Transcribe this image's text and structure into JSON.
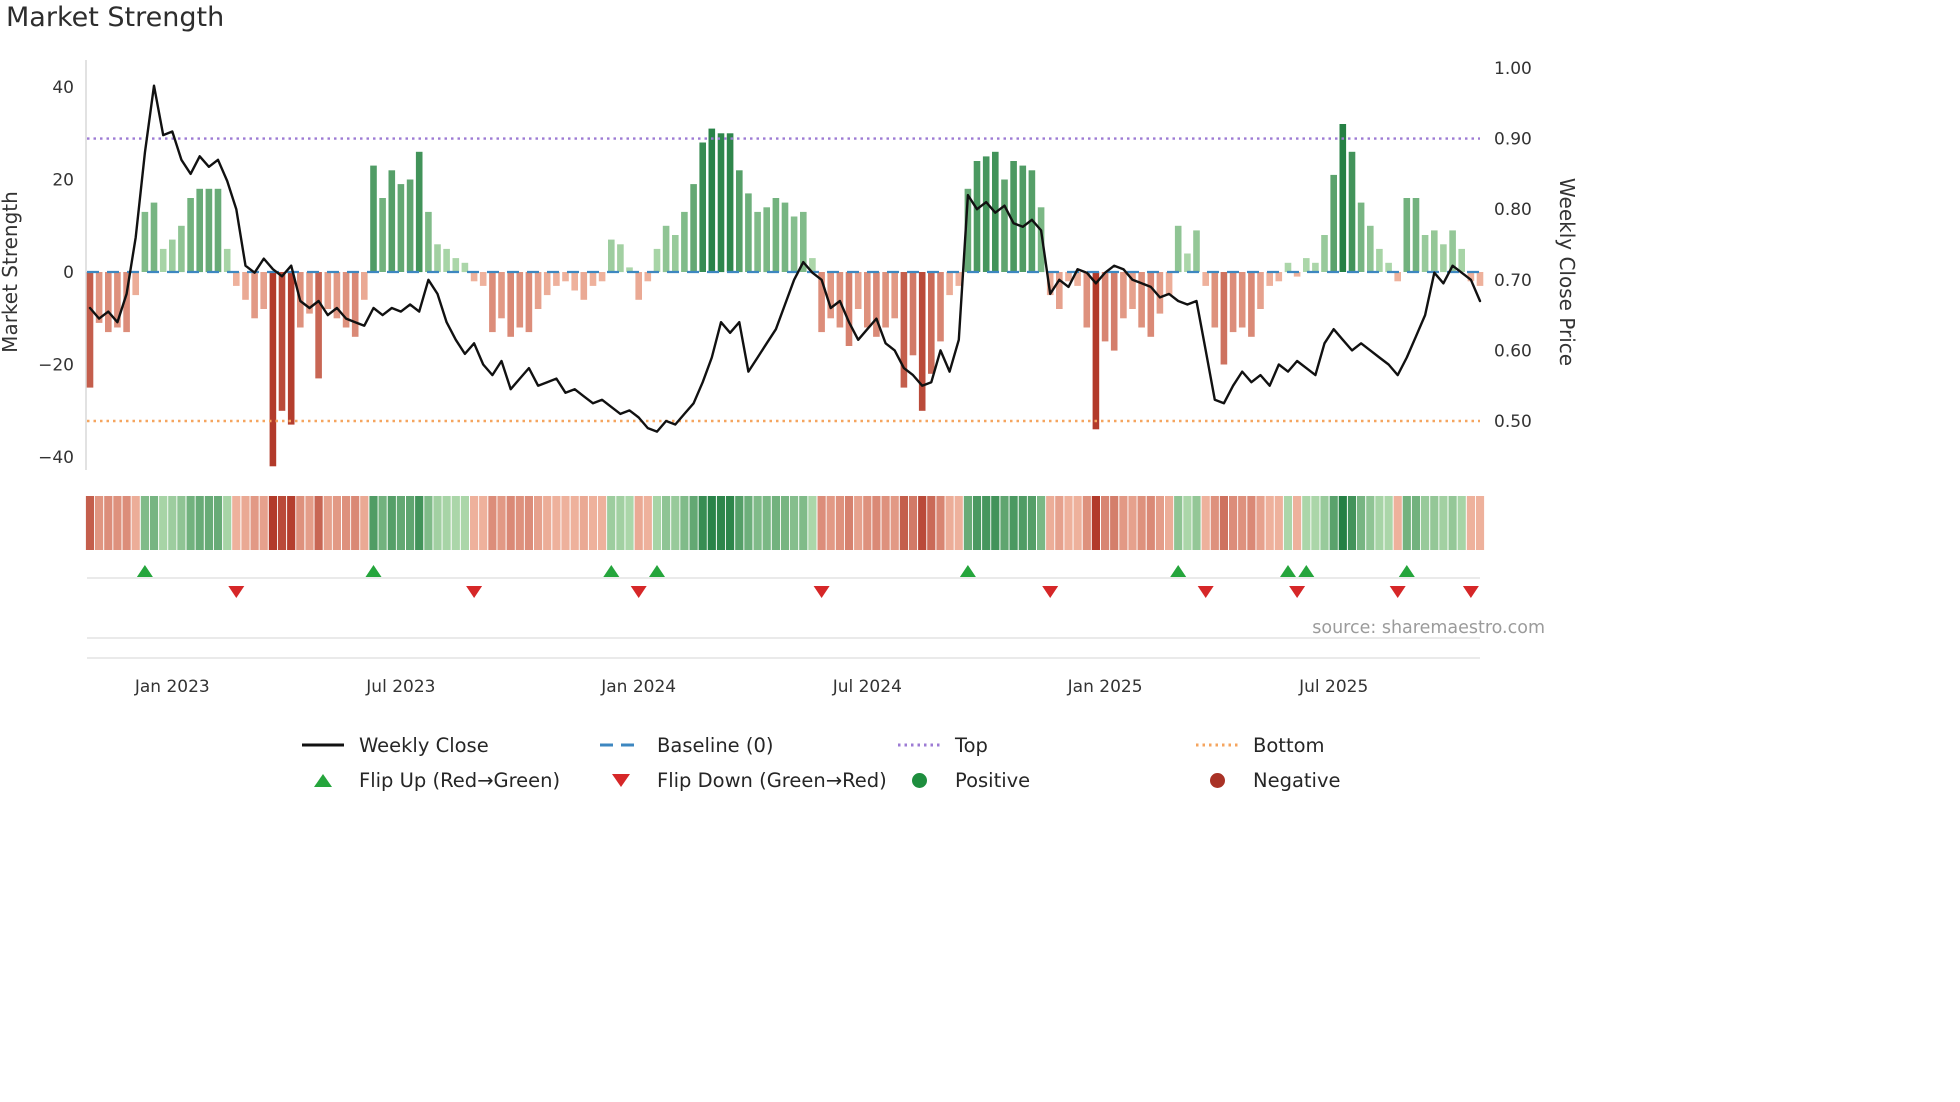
{
  "title": "Market Strength",
  "source": "source: sharemaestro.com",
  "colors": {
    "line": "#111111",
    "baseline": "#3d87c0",
    "top": "#9d7bd4",
    "bottom": "#f5a55f",
    "pos_light": "#bfe3b8",
    "pos_dark": "#1b7a3d",
    "neg_light": "#f6c1ab",
    "neg_dark": "#b23a2a",
    "flip_up": "#25a53c",
    "flip_down": "#d62728",
    "positive_dot": "#1e8e3e",
    "negative_dot": "#a93226"
  },
  "legend": {
    "weekly_close": "Weekly Close",
    "baseline": "Baseline (0)",
    "top": "Top",
    "bottom": "Bottom",
    "flip_up": "Flip Up (Red→Green)",
    "flip_down": "Flip Down (Green→Red)",
    "positive": "Positive",
    "negative": "Negative"
  },
  "chart_data": {
    "type": "bar+line",
    "title": "Market Strength",
    "x_unit": "weeks (weekly data, late 2022 through late 2025)",
    "left_axis": {
      "label": "Market Strength",
      "range": [
        -45,
        45
      ],
      "ticks": [
        {
          "v": 40,
          "label": "40"
        },
        {
          "v": 20,
          "label": "20"
        },
        {
          "v": 0,
          "label": "0"
        },
        {
          "v": -20,
          "label": "−20"
        },
        {
          "v": -40,
          "label": "−40"
        }
      ]
    },
    "right_axis": {
      "label": "Weekly Close Price",
      "range": [
        0.43,
        1.01
      ],
      "ticks": [
        {
          "v": 1.0,
          "label": "1.00"
        },
        {
          "v": 0.9,
          "label": "0.90"
        },
        {
          "v": 0.8,
          "label": "0.80"
        },
        {
          "v": 0.7,
          "label": "0.70"
        },
        {
          "v": 0.6,
          "label": "0.60"
        },
        {
          "v": 0.5,
          "label": "0.50"
        }
      ]
    },
    "x_ticks": [
      {
        "week": 9,
        "label": "Jan 2023"
      },
      {
        "week": 34,
        "label": "Jul 2023"
      },
      {
        "week": 60,
        "label": "Jan 2024"
      },
      {
        "week": 85,
        "label": "Jul 2024"
      },
      {
        "week": 111,
        "label": "Jan 2025"
      },
      {
        "week": 136,
        "label": "Jul 2025"
      }
    ],
    "baseline_level": 0,
    "top_level": 0.9,
    "bottom_level": 0.5,
    "heatmap_strip": "bar values repeated as a color strip below the main plot",
    "flip_up_weeks": [
      6,
      31,
      57,
      62,
      96,
      119,
      131,
      133,
      144
    ],
    "flip_down_weeks": [
      16,
      42,
      60,
      80,
      105,
      122,
      132,
      143,
      151
    ],
    "series": [
      {
        "name": "Market Strength",
        "type": "bar",
        "axis": "left",
        "values": [
          -25,
          -11,
          -13,
          -12,
          -13,
          -5,
          13,
          15,
          5,
          7,
          10,
          16,
          18,
          18,
          18,
          5,
          -3,
          -6,
          -10,
          -8,
          -42,
          -30,
          -33,
          -12,
          -9,
          -23,
          -8,
          -10,
          -12,
          -14,
          -6,
          23,
          16,
          22,
          19,
          20,
          26,
          13,
          6,
          5,
          3,
          2,
          -2,
          -3,
          -13,
          -10,
          -14,
          -12,
          -13,
          -8,
          -5,
          -3,
          -2,
          -4,
          -6,
          -3,
          -2,
          7,
          6,
          1,
          -6,
          -2,
          5,
          10,
          8,
          13,
          19,
          28,
          31,
          30,
          30,
          22,
          17,
          13,
          14,
          16,
          15,
          12,
          13,
          3,
          -13,
          -10,
          -12,
          -16,
          -8,
          -12,
          -14,
          -12,
          -10,
          -25,
          -18,
          -30,
          -22,
          -15,
          -5,
          -3,
          18,
          24,
          25,
          26,
          20,
          24,
          23,
          22,
          14,
          -5,
          -8,
          -2,
          -3,
          -12,
          -34,
          -15,
          -17,
          -10,
          -8,
          -12,
          -14,
          -9,
          -5,
          10,
          4,
          9,
          -3,
          -12,
          -20,
          -13,
          -12,
          -14,
          -8,
          -3,
          -2,
          2,
          -1,
          3,
          2,
          8,
          21,
          32,
          26,
          15,
          10,
          5,
          2,
          -2,
          16,
          16,
          8,
          9,
          6,
          9,
          5,
          -2,
          -3
        ]
      },
      {
        "name": "Weekly Close",
        "type": "line",
        "axis": "right",
        "values": [
          0.66,
          0.645,
          0.655,
          0.64,
          0.68,
          0.76,
          0.88,
          0.975,
          0.905,
          0.91,
          0.87,
          0.85,
          0.875,
          0.86,
          0.87,
          0.84,
          0.8,
          0.72,
          0.71,
          0.73,
          0.715,
          0.705,
          0.72,
          0.67,
          0.66,
          0.67,
          0.65,
          0.66,
          0.645,
          0.64,
          0.635,
          0.66,
          0.65,
          0.66,
          0.655,
          0.665,
          0.655,
          0.7,
          0.68,
          0.64,
          0.615,
          0.595,
          0.61,
          0.58,
          0.565,
          0.585,
          0.545,
          0.56,
          0.575,
          0.55,
          0.555,
          0.56,
          0.54,
          0.545,
          0.535,
          0.525,
          0.53,
          0.52,
          0.51,
          0.515,
          0.505,
          0.49,
          0.485,
          0.5,
          0.495,
          0.51,
          0.525,
          0.555,
          0.59,
          0.64,
          0.625,
          0.64,
          0.57,
          0.59,
          0.61,
          0.63,
          0.665,
          0.7,
          0.725,
          0.71,
          0.7,
          0.66,
          0.67,
          0.64,
          0.615,
          0.63,
          0.645,
          0.61,
          0.6,
          0.575,
          0.565,
          0.55,
          0.555,
          0.6,
          0.57,
          0.615,
          0.82,
          0.8,
          0.81,
          0.795,
          0.805,
          0.78,
          0.775,
          0.785,
          0.77,
          0.68,
          0.7,
          0.69,
          0.715,
          0.71,
          0.695,
          0.71,
          0.72,
          0.715,
          0.7,
          0.695,
          0.69,
          0.675,
          0.68,
          0.67,
          0.665,
          0.67,
          0.6,
          0.53,
          0.525,
          0.55,
          0.57,
          0.555,
          0.565,
          0.55,
          0.58,
          0.57,
          0.585,
          0.575,
          0.565,
          0.61,
          0.63,
          0.615,
          0.6,
          0.61,
          0.6,
          0.59,
          0.58,
          0.565,
          0.59,
          0.62,
          0.65,
          0.71,
          0.695,
          0.72,
          0.71,
          0.7,
          0.67
        ]
      }
    ]
  }
}
